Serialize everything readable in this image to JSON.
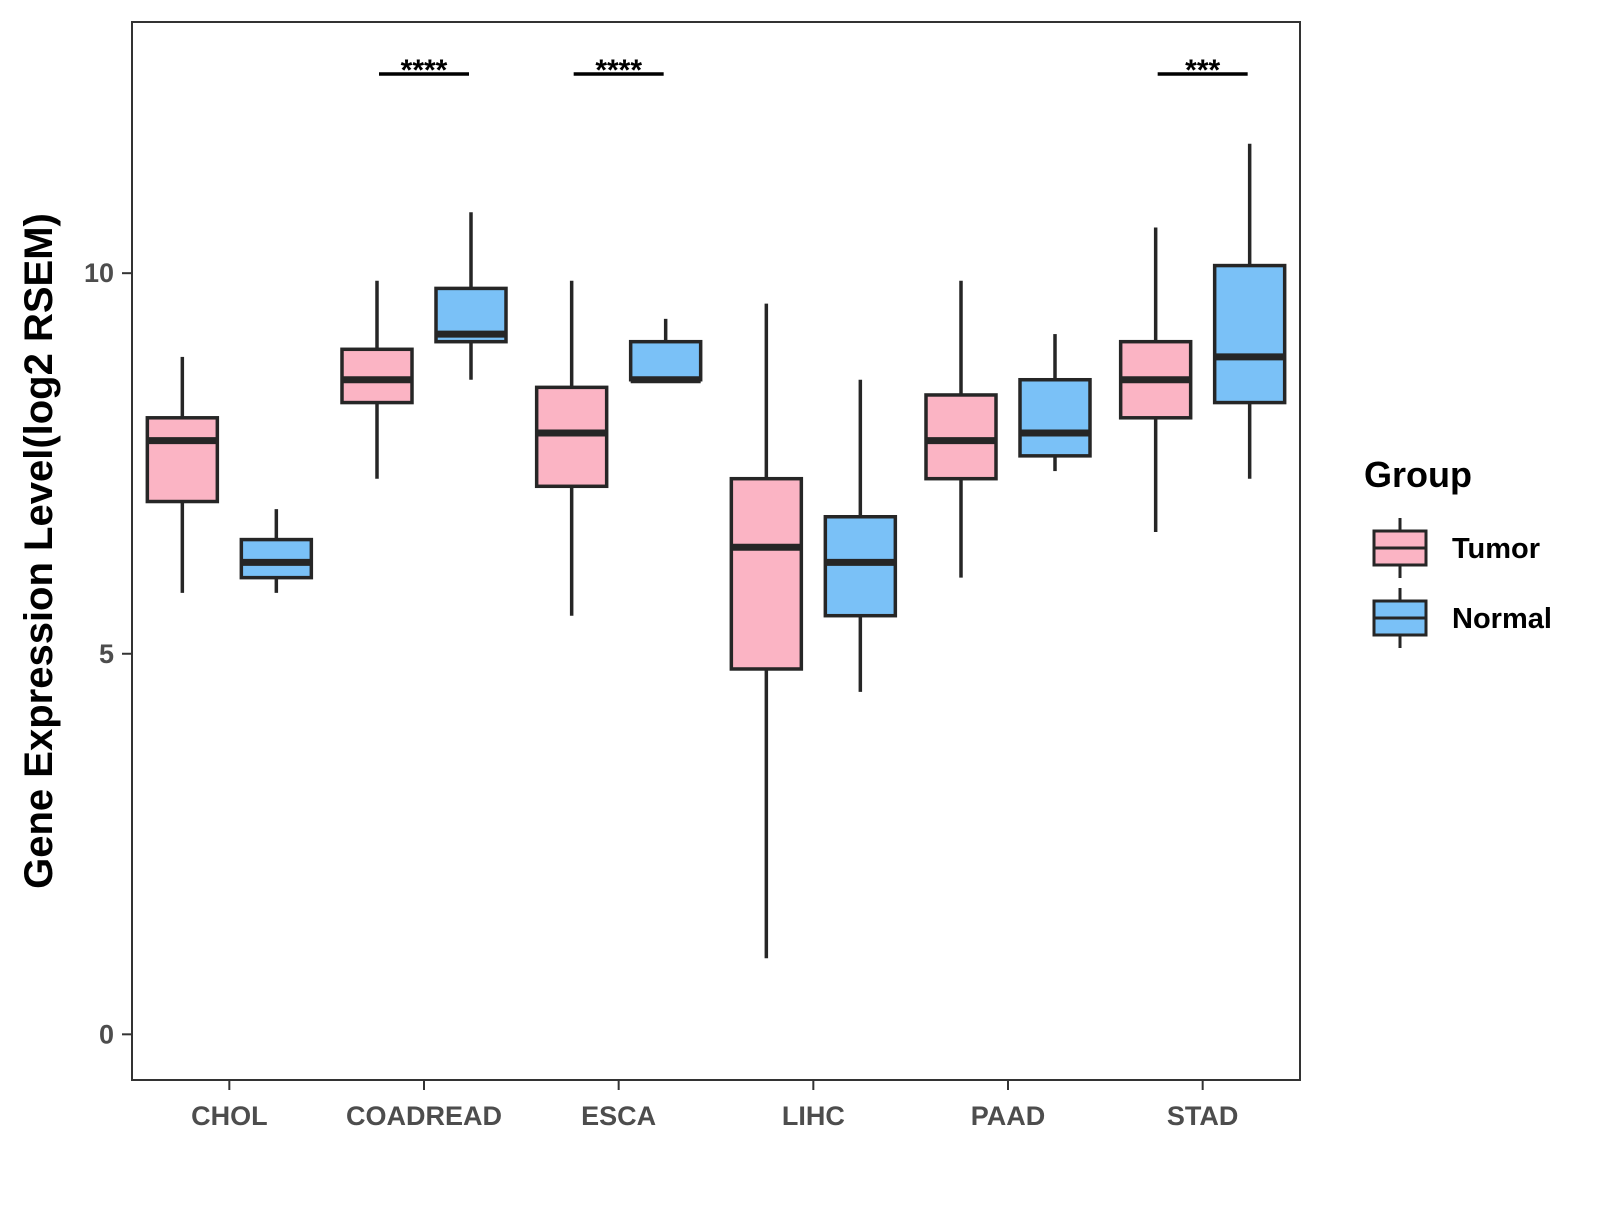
{
  "chart_data": {
    "type": "boxplot",
    "title": "",
    "xlabel": "",
    "ylabel": "Gene Expression Level(log2 RSEM)",
    "ylim": [
      -0.6,
      13.3
    ],
    "yticks": [
      0,
      5,
      10
    ],
    "grid": false,
    "legend": {
      "title": "Group",
      "position": "right"
    },
    "categories": [
      "CHOL",
      "COADREAD",
      "ESCA",
      "LIHC",
      "PAAD",
      "STAD"
    ],
    "series": [
      {
        "name": "Tumor",
        "color": "#fbb4c4",
        "boxes": [
          {
            "min": 5.8,
            "q1": 7.0,
            "median": 7.8,
            "q3": 8.1,
            "max": 8.9
          },
          {
            "min": 7.3,
            "q1": 8.3,
            "median": 8.6,
            "q3": 9.0,
            "max": 9.9
          },
          {
            "min": 5.5,
            "q1": 7.2,
            "median": 7.9,
            "q3": 8.5,
            "max": 9.9
          },
          {
            "min": 1.0,
            "q1": 4.8,
            "median": 6.4,
            "q3": 7.3,
            "max": 9.6
          },
          {
            "min": 6.0,
            "q1": 7.3,
            "median": 7.8,
            "q3": 8.4,
            "max": 9.9
          },
          {
            "min": 6.6,
            "q1": 8.1,
            "median": 8.6,
            "q3": 9.1,
            "max": 10.6
          }
        ]
      },
      {
        "name": "Normal",
        "color": "#7ac1f7",
        "boxes": [
          {
            "min": 5.8,
            "q1": 6.0,
            "median": 6.2,
            "q3": 6.5,
            "max": 6.9
          },
          {
            "min": 8.6,
            "q1": 9.1,
            "median": 9.2,
            "q3": 9.8,
            "max": 10.8
          },
          {
            "min": 8.6,
            "q1": 8.6,
            "median": 8.6,
            "q3": 9.1,
            "max": 9.4
          },
          {
            "min": 4.5,
            "q1": 5.5,
            "median": 6.2,
            "q3": 6.8,
            "max": 8.6
          },
          {
            "min": 7.4,
            "q1": 7.6,
            "median": 7.9,
            "q3": 8.6,
            "max": 9.2
          },
          {
            "min": 7.3,
            "q1": 8.3,
            "median": 8.9,
            "q3": 10.1,
            "max": 11.7
          }
        ]
      }
    ],
    "annotations": [
      {
        "category": "COADREAD",
        "label": "****"
      },
      {
        "category": "ESCA",
        "label": "****"
      },
      {
        "category": "STAD",
        "label": "***"
      }
    ]
  }
}
